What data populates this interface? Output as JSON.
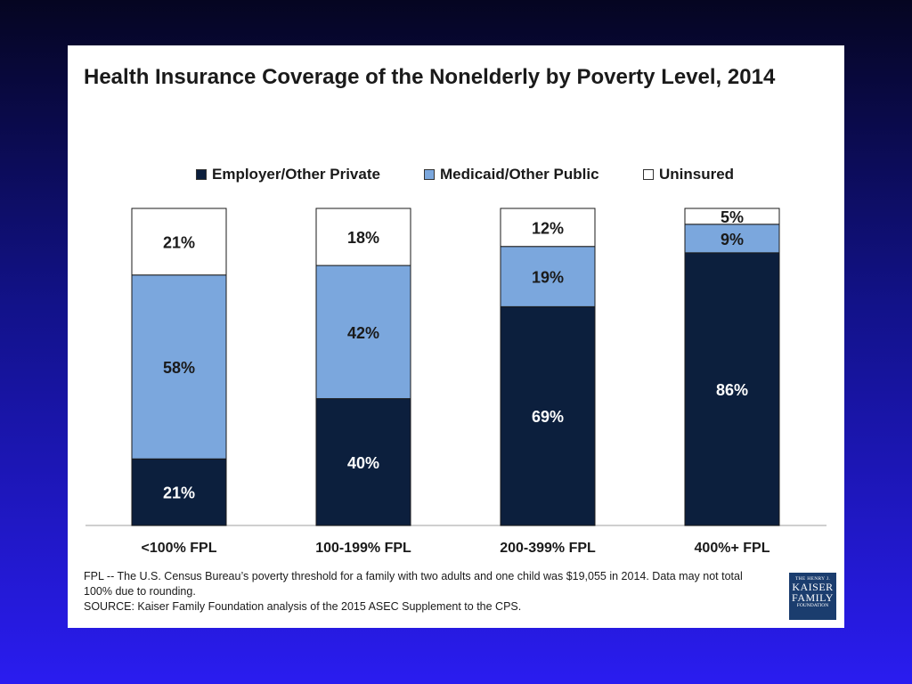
{
  "chart_data": {
    "type": "bar",
    "stacked": true,
    "title": "Health Insurance Coverage of the Nonelderly by Poverty Level, 2014",
    "categories": [
      "<100% FPL",
      "100-199% FPL",
      "200-399% FPL",
      "400%+ FPL"
    ],
    "series": [
      {
        "name": "Employer/Other Private",
        "values": [
          21,
          40,
          69,
          86
        ],
        "labels": [
          "21%",
          "40%",
          "69%",
          "86%"
        ],
        "color": "#0c1f3d",
        "label_color": "#ffffff"
      },
      {
        "name": "Medicaid/Other Public",
        "values": [
          58,
          42,
          19,
          9
        ],
        "labels": [
          "58%",
          "42%",
          "19%",
          "9%"
        ],
        "color": "#7ba7dd",
        "label_color": "#1a1a1a"
      },
      {
        "name": "Uninsured",
        "values": [
          21,
          18,
          12,
          5
        ],
        "labels": [
          "21%",
          "18%",
          "12%",
          "5%"
        ],
        "color": "#ffffff",
        "label_color": "#1a1a1a"
      }
    ],
    "ylim": [
      0,
      100
    ],
    "xlabel": "",
    "ylabel": "",
    "legend_position": "top"
  },
  "footnote": {
    "line1": "FPL -- The U.S. Census Bureau’s poverty threshold for a family with two adults and one child was $19,055 in 2014.  Data may not total 100% due to rounding.",
    "source": "SOURCE: Kaiser Family Foundation analysis of the 2015 ASEC Supplement to the CPS."
  },
  "logo": {
    "line1": "THE HENRY J.",
    "line2": "KAISER",
    "line3": "FAMILY",
    "line4": "FOUNDATION"
  }
}
